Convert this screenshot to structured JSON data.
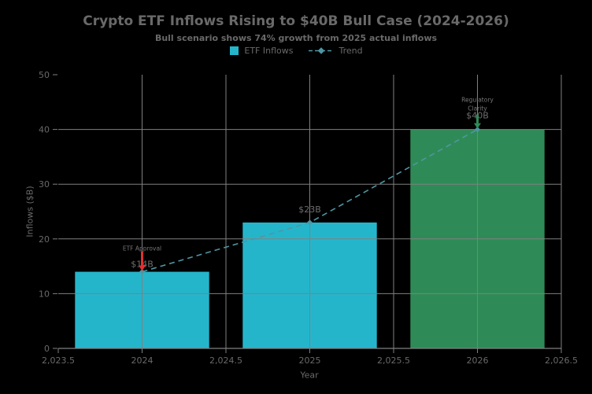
{
  "title": "Crypto ETF Inflows Rising to $40B Bull Case (2024-2026)",
  "subtitle": "Bull scenario shows 74% growth from 2025 actual inflows",
  "legend": {
    "items": [
      {
        "label": "ETF Inflows",
        "swatch": "filled-square"
      },
      {
        "label": "Trend",
        "swatch": "dashed-line-with-diamond-marker"
      }
    ]
  },
  "axes": {
    "xlabel": "Year",
    "ylabel": "Inflows ($B)"
  },
  "colors": {
    "background": "#000000",
    "bar_cyan": "#25b5cb",
    "bar_green": "#2e8b57",
    "trend": "#4f96a3",
    "grid": "#808080",
    "axis": "#808080",
    "tick_label": "#696969",
    "value_label": "#6e6e6e",
    "annotation_text": "#757575",
    "arrow_red": "#e03131",
    "arrow_green": "#2e8b57"
  },
  "chart_data": {
    "type": "bar",
    "title": "Crypto ETF Inflows Rising to $40B Bull Case (2024-2026)",
    "subtitle": "Bull scenario shows 74% growth from 2025 actual inflows",
    "xlabel": "Year",
    "ylabel": "Inflows ($B)",
    "categories": [
      2024,
      2025,
      2026
    ],
    "series": [
      {
        "name": "ETF Inflows",
        "type": "bar",
        "values": [
          14,
          23,
          40
        ],
        "colors": [
          "#25b5cb",
          "#25b5cb",
          "#2e8b57"
        ]
      },
      {
        "name": "Trend",
        "type": "line",
        "style": "dashed",
        "marker": "diamond",
        "color": "#4f96a3",
        "values": [
          14,
          23,
          40
        ]
      }
    ],
    "bar_labels": [
      "$14B",
      "$23B",
      "$40B"
    ],
    "xlim": [
      2023.5,
      2026.5
    ],
    "ylim": [
      0,
      50
    ],
    "x_tick_values": [
      2023.5,
      2024,
      2024.5,
      2025,
      2025.5,
      2026,
      2026.5
    ],
    "x_tick_labels": [
      "2,023.5",
      "2024",
      "2,024.5",
      "2025",
      "2,025.5",
      "2026",
      "2,026.5"
    ],
    "y_ticks": [
      0,
      10,
      20,
      30,
      40,
      50
    ],
    "y_tick_labels": [
      "0",
      "10",
      "20",
      "30",
      "40",
      "50"
    ],
    "grid": true,
    "legend_position": "top-center",
    "annotations": [
      {
        "id": "etf-approval",
        "lines": [
          "ETF Approval"
        ],
        "category": 2024,
        "arrow_color": "#e03131"
      },
      {
        "id": "regulatory-clarity",
        "lines": [
          "Regulatory",
          "Clarity"
        ],
        "category": 2026,
        "arrow_color": "#2e8b57"
      }
    ]
  }
}
